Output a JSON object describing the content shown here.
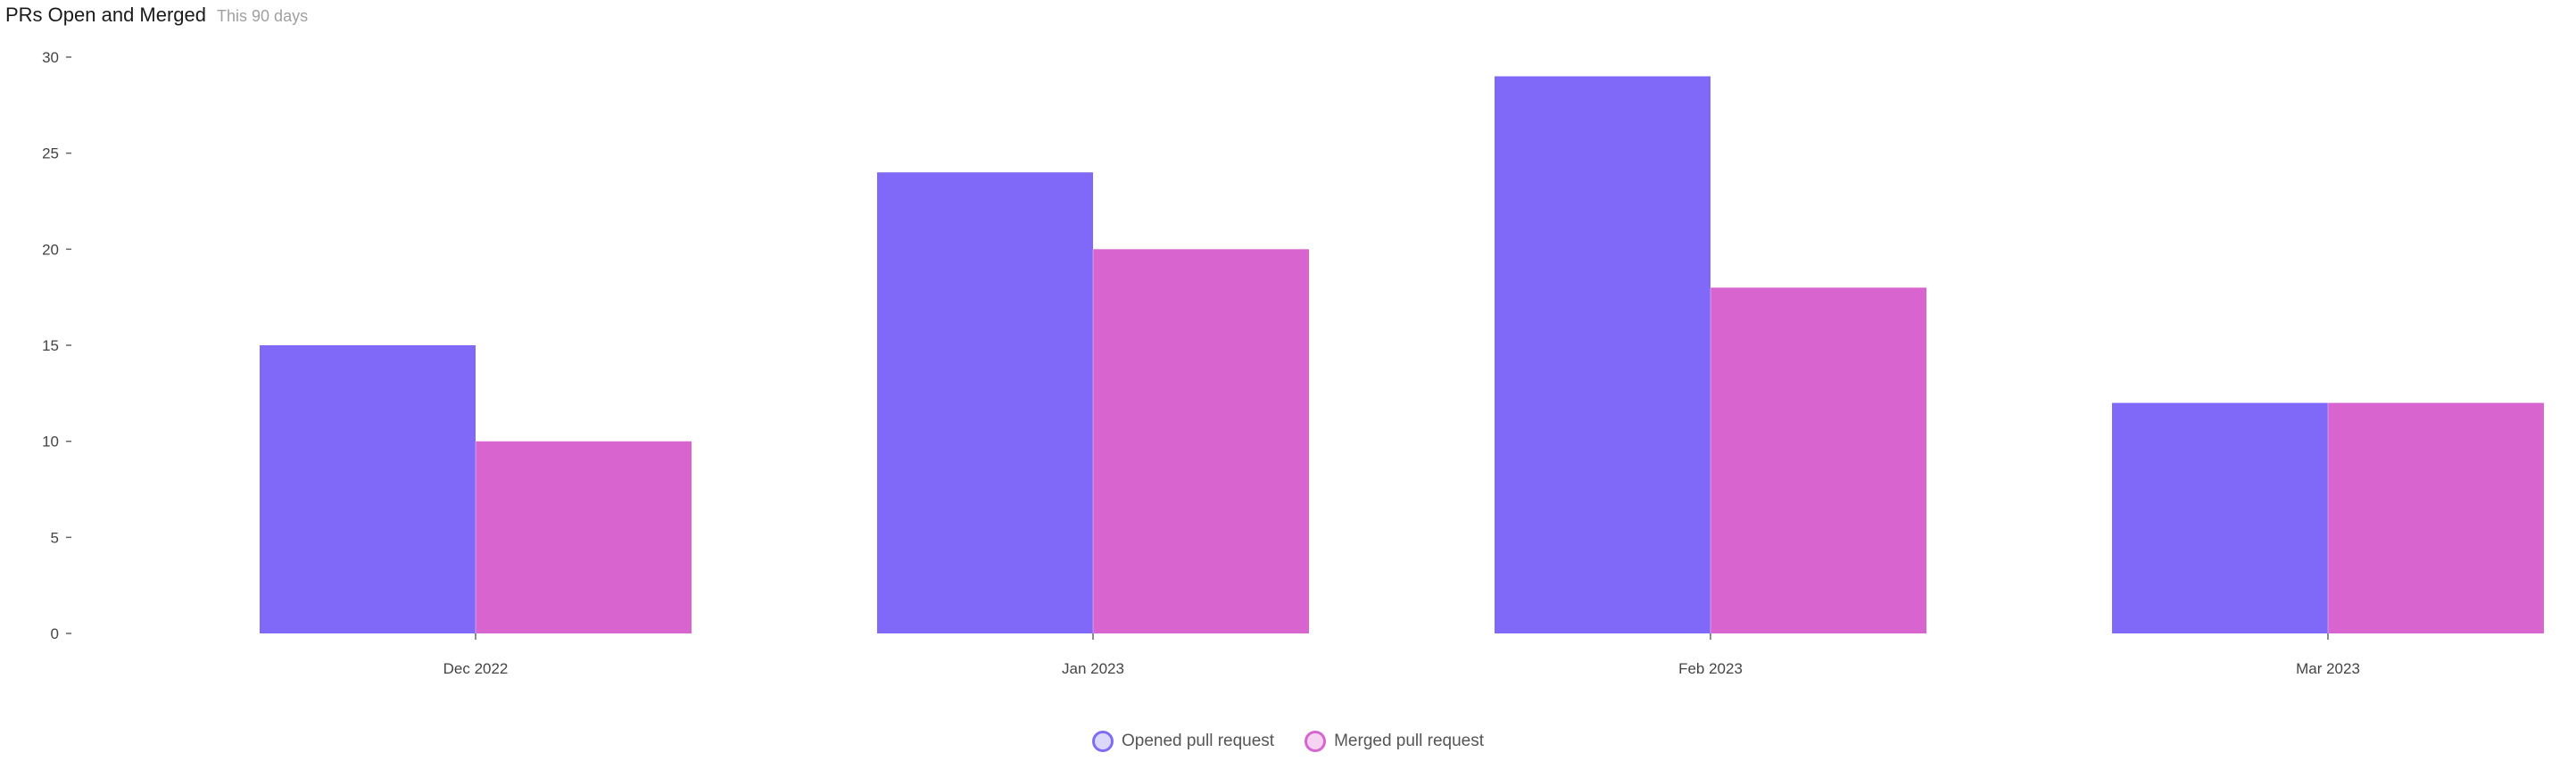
{
  "header": {
    "title": "PRs Open and Merged",
    "subtitle": "This 90 days"
  },
  "chart_data": {
    "type": "bar",
    "title": "PRs Open and Merged",
    "subtitle": "This 90 days",
    "categories": [
      "Dec 2022",
      "Jan 2023",
      "Feb 2023",
      "Mar 2023"
    ],
    "series": [
      {
        "name": "Opened pull request",
        "values": [
          15,
          24,
          29,
          12
        ],
        "color": "#8069f8"
      },
      {
        "name": "Merged pull request",
        "values": [
          10,
          20,
          18,
          12
        ],
        "color": "#d864cf"
      }
    ],
    "yticks": [
      0,
      5,
      10,
      15,
      20,
      25,
      30
    ],
    "ylim": [
      0,
      30
    ],
    "grid": false,
    "legend": "bottom-center"
  }
}
